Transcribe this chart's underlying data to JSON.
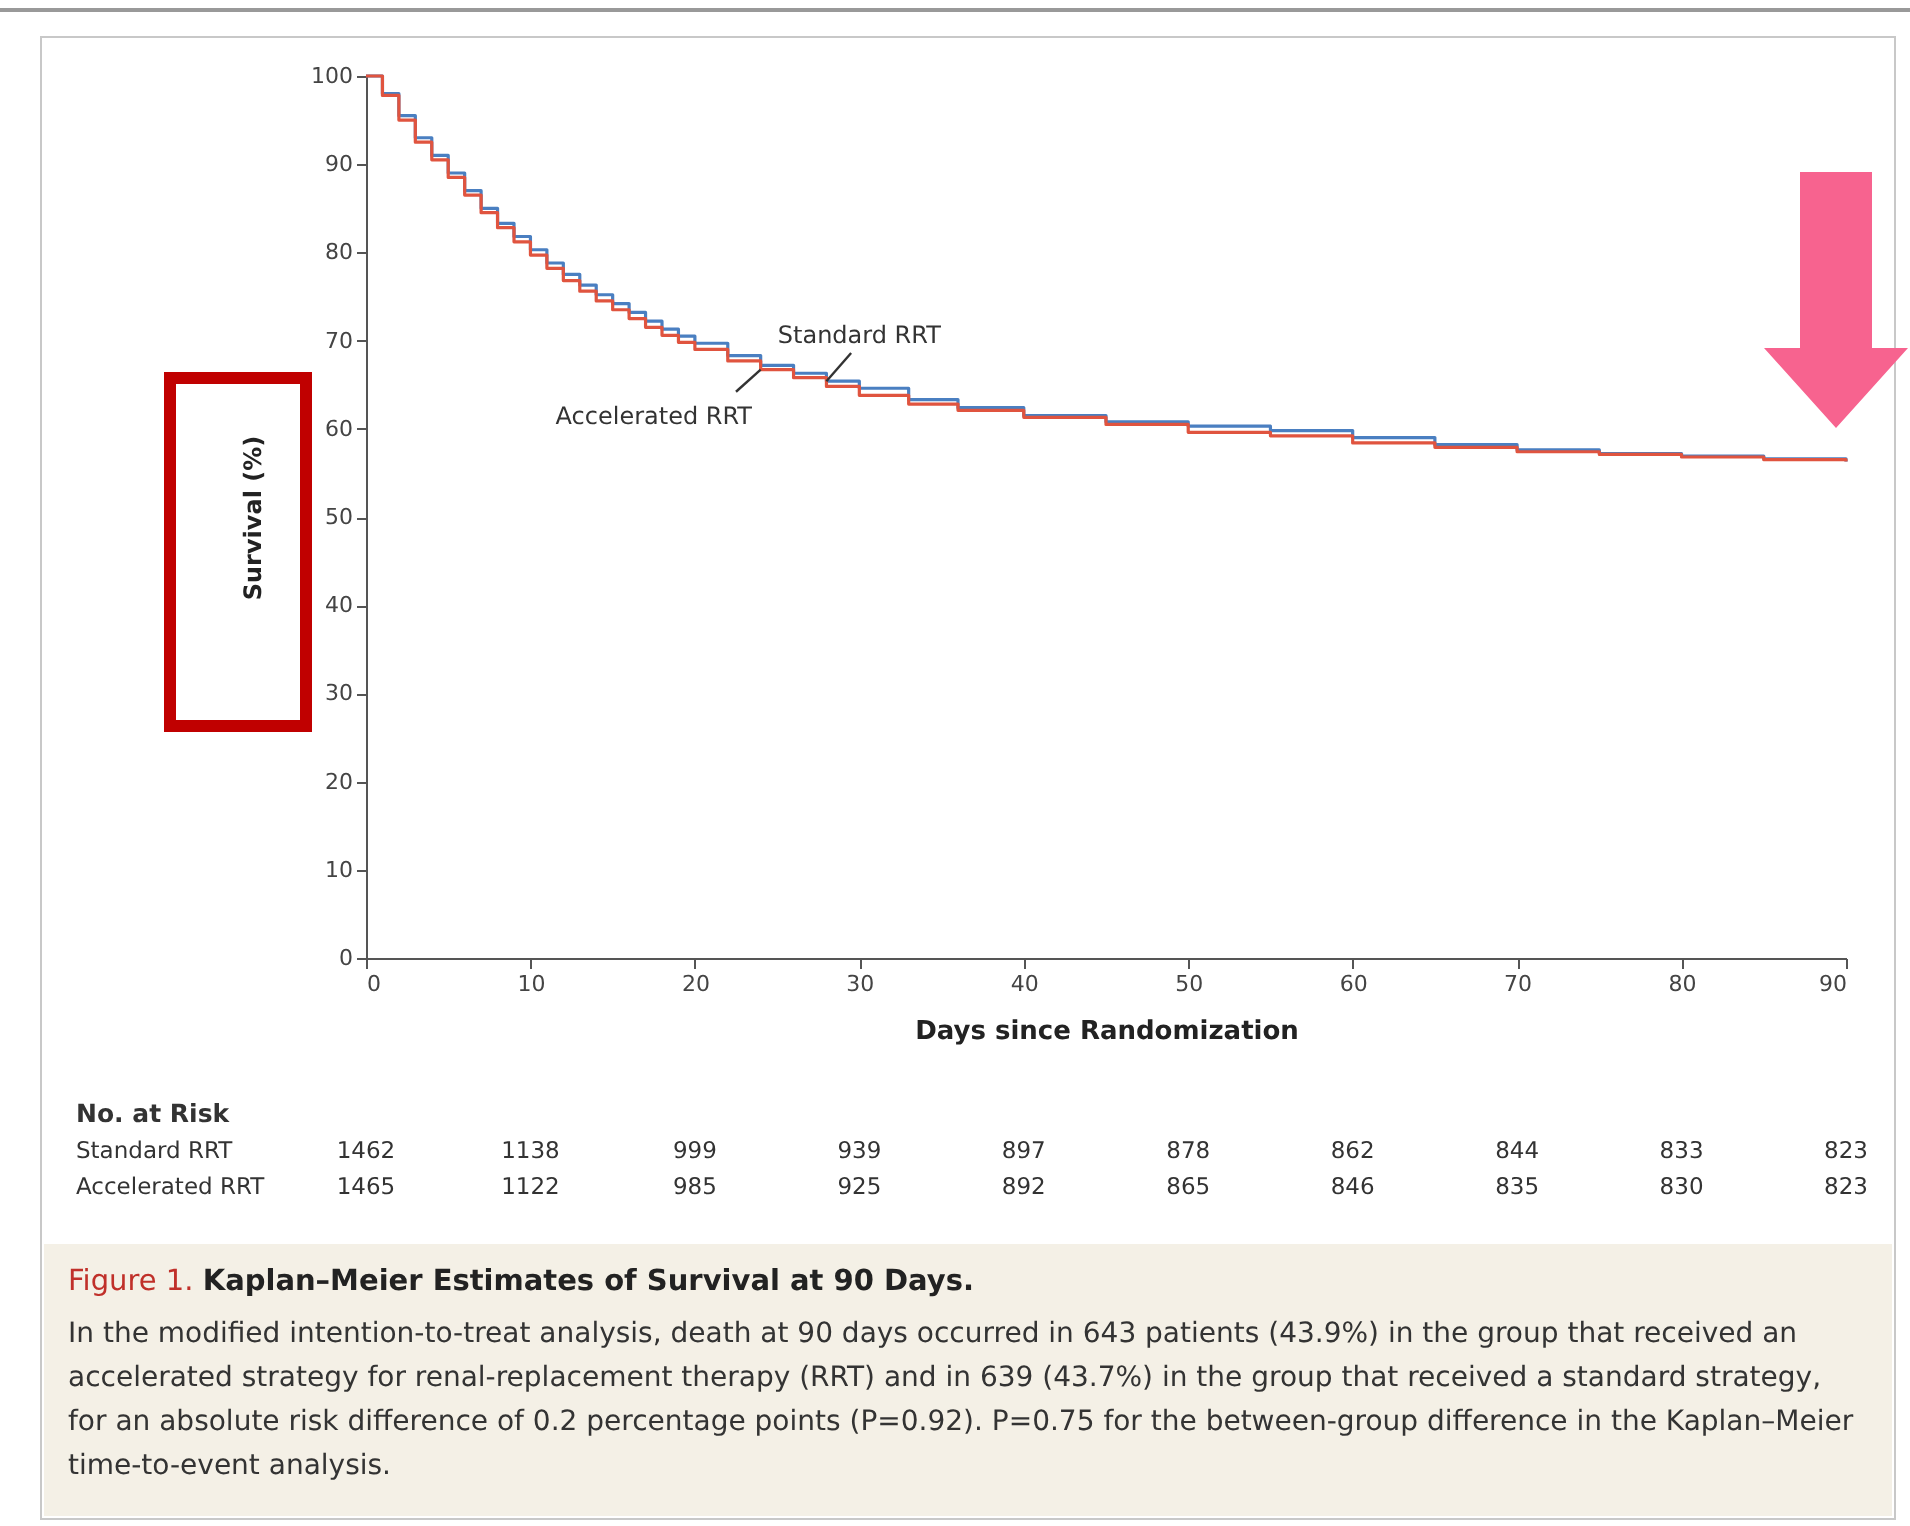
{
  "chart_data": {
    "type": "step",
    "title": "Figure 1. Kaplan–Meier Estimates of Survival at 90 Days.",
    "xlabel": "Days since Randomization",
    "ylabel": "Survival (%)",
    "x": [
      0,
      1,
      2,
      3,
      4,
      5,
      6,
      7,
      8,
      9,
      10,
      11,
      12,
      13,
      14,
      15,
      16,
      17,
      18,
      19,
      20,
      22,
      24,
      26,
      28,
      30,
      33,
      36,
      40,
      45,
      50,
      55,
      60,
      65,
      70,
      75,
      80,
      85,
      90
    ],
    "series": [
      {
        "name": "Standard RRT",
        "color": "#4a7fc1",
        "values": [
          100,
          98,
          95.5,
          93,
          91,
          89,
          87,
          85,
          83.3,
          81.8,
          80.3,
          78.8,
          77.5,
          76.3,
          75.2,
          74.2,
          73.2,
          72.2,
          71.3,
          70.5,
          69.7,
          68.3,
          67.2,
          66.3,
          65.4,
          64.6,
          63.3,
          62.4,
          61.5,
          60.8,
          60.3,
          59.8,
          59,
          58.2,
          57.6,
          57.2,
          56.9,
          56.6,
          56.3
        ]
      },
      {
        "name": "Accelerated RRT",
        "color": "#e0543f",
        "values": [
          100,
          97.8,
          95,
          92.5,
          90.5,
          88.5,
          86.5,
          84.5,
          82.8,
          81.2,
          79.7,
          78.2,
          76.8,
          75.6,
          74.5,
          73.5,
          72.5,
          71.5,
          70.6,
          69.8,
          69,
          67.7,
          66.7,
          65.8,
          64.8,
          63.8,
          62.8,
          62.1,
          61.3,
          60.5,
          59.6,
          59.2,
          58.4,
          57.9,
          57.4,
          57.1,
          56.8,
          56.5,
          56.3
        ]
      }
    ],
    "xlim": [
      0,
      90
    ],
    "xticks": [
      0,
      10,
      20,
      30,
      40,
      50,
      60,
      70,
      80,
      90
    ],
    "ylim": [
      0,
      100
    ],
    "yticks": [
      0,
      10,
      20,
      30,
      40,
      50,
      60,
      70,
      80,
      90,
      100
    ],
    "grid": false,
    "legend": false,
    "line_style": "solid",
    "marker": "none",
    "annotations": [
      "No. at Risk",
      "Standard RRT",
      "1462 1138 999 939 897 878 862 844 833 823",
      "Accelerated RRT",
      "1465 1122 985 925 892 865 846 835 830 823",
      "In the modified intention-to-treat analysis, death at 90 days occurred in 643 patients (43.9%) in the group that received an accelerated strategy for renal-replacement therapy (RRT) and in 639 (43.7%) in the group that received a standard strategy, for an absolute risk difference of 0.2 percentage points (P=0.92). P=0.75 for the between-group difference in the Kaplan–Meier time-to-event analysis."
    ]
  }
}
